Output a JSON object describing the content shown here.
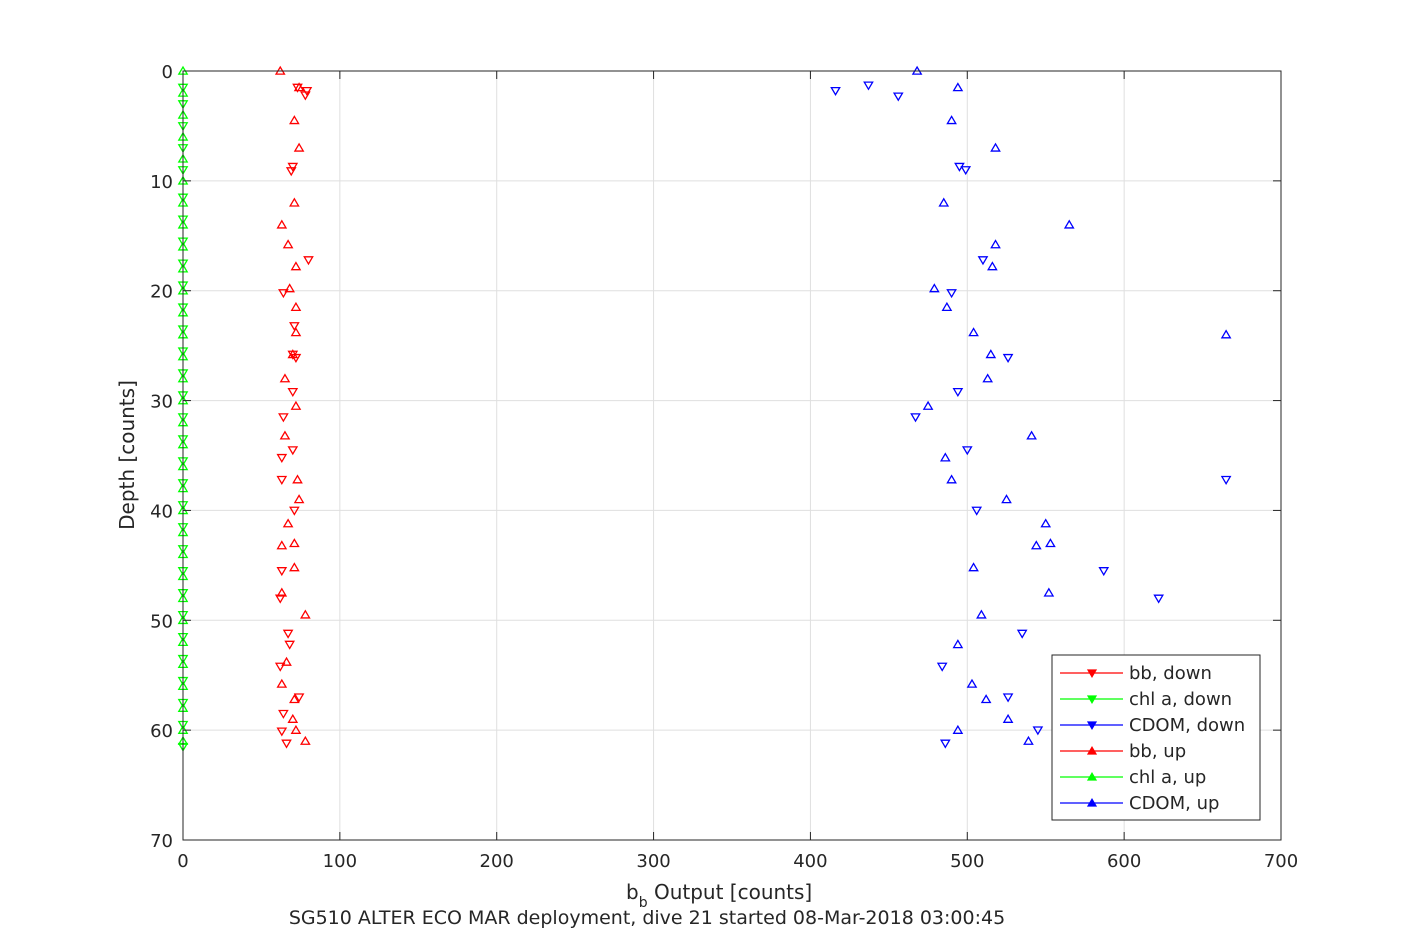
{
  "chart_data": {
    "type": "scatter",
    "xlabel_main": "b",
    "xlabel_sub": "b",
    "xlabel_rest": " Output [counts]",
    "ylabel": "Depth [counts]",
    "caption": "SG510 ALTER ECO MAR deployment, dive 21 started 08-Mar-2018 03:00:45",
    "xlim": [
      0,
      700
    ],
    "ylim": [
      0,
      70
    ],
    "y_reversed": true,
    "grid": true,
    "legend_position": "bottom-right",
    "xticks": [
      "0",
      "100",
      "200",
      "300",
      "400",
      "500",
      "600",
      "700"
    ],
    "yticks": [
      "0",
      "10",
      "20",
      "30",
      "40",
      "50",
      "60",
      "70"
    ],
    "series": [
      {
        "name": "bb, down",
        "color": "#ff0000",
        "marker": "down",
        "points": [
          [
            73,
            1.5
          ],
          [
            79,
            1.8
          ],
          [
            78,
            2.2
          ],
          [
            70,
            8.7
          ],
          [
            69,
            9.1
          ],
          [
            80,
            17.2
          ],
          [
            64,
            20.2
          ],
          [
            71,
            23.2
          ],
          [
            70,
            25.8
          ],
          [
            72,
            26.1
          ],
          [
            70,
            29.2
          ],
          [
            64,
            31.5
          ],
          [
            70,
            34.5
          ],
          [
            63,
            35.2
          ],
          [
            63,
            37.2
          ],
          [
            71,
            40.0
          ],
          [
            63,
            45.5
          ],
          [
            62,
            48.0
          ],
          [
            67,
            51.2
          ],
          [
            68,
            52.2
          ],
          [
            62,
            54.2
          ],
          [
            74,
            57.0
          ],
          [
            64,
            58.5
          ],
          [
            63,
            60.1
          ],
          [
            66,
            61.2
          ]
        ]
      },
      {
        "name": "chl a, down",
        "color": "#00ff00",
        "marker": "down",
        "points": [
          [
            0,
            1.5
          ],
          [
            0,
            3.0
          ],
          [
            0,
            5.0
          ],
          [
            0,
            7.0
          ],
          [
            0,
            9.0
          ],
          [
            0,
            11.5
          ],
          [
            0,
            13.5
          ],
          [
            0,
            15.5
          ],
          [
            0,
            17.5
          ],
          [
            0,
            19.5
          ],
          [
            0,
            21.5
          ],
          [
            0,
            23.5
          ],
          [
            0,
            25.5
          ],
          [
            0,
            27.5
          ],
          [
            0,
            29.5
          ],
          [
            0,
            31.5
          ],
          [
            0,
            33.5
          ],
          [
            0,
            35.5
          ],
          [
            0,
            37.5
          ],
          [
            0,
            39.5
          ],
          [
            0,
            41.5
          ],
          [
            0,
            43.5
          ],
          [
            0,
            45.5
          ],
          [
            0,
            47.5
          ],
          [
            0,
            49.5
          ],
          [
            0,
            51.5
          ],
          [
            0,
            53.5
          ],
          [
            0,
            55.5
          ],
          [
            0,
            57.5
          ],
          [
            0,
            59.5
          ],
          [
            0,
            61.5
          ]
        ]
      },
      {
        "name": "CDOM, down",
        "color": "#0000ff",
        "marker": "down",
        "points": [
          [
            416,
            1.8
          ],
          [
            437,
            1.3
          ],
          [
            456,
            2.3
          ],
          [
            499,
            9.0
          ],
          [
            495,
            8.7
          ],
          [
            510,
            17.2
          ],
          [
            490,
            20.2
          ],
          [
            526,
            26.1
          ],
          [
            494,
            29.2
          ],
          [
            467,
            31.5
          ],
          [
            500,
            34.5
          ],
          [
            665,
            37.2
          ],
          [
            506,
            40.0
          ],
          [
            587,
            45.5
          ],
          [
            622,
            48.0
          ],
          [
            535,
            51.2
          ],
          [
            484,
            54.2
          ],
          [
            526,
            57.0
          ],
          [
            545,
            60.0
          ],
          [
            486,
            61.2
          ]
        ]
      },
      {
        "name": "bb, up",
        "color": "#ff0000",
        "marker": "up",
        "points": [
          [
            62,
            0.0
          ],
          [
            74,
            1.5
          ],
          [
            71,
            4.5
          ],
          [
            74,
            7.0
          ],
          [
            71,
            12.0
          ],
          [
            63,
            14.0
          ],
          [
            67,
            15.8
          ],
          [
            72,
            17.8
          ],
          [
            68,
            19.8
          ],
          [
            72,
            21.5
          ],
          [
            72,
            23.8
          ],
          [
            70,
            25.8
          ],
          [
            65,
            28.0
          ],
          [
            72,
            30.5
          ],
          [
            65,
            33.2
          ],
          [
            73,
            37.2
          ],
          [
            74,
            39.0
          ],
          [
            67,
            41.2
          ],
          [
            71,
            43.0
          ],
          [
            63,
            43.2
          ],
          [
            71,
            45.2
          ],
          [
            63,
            47.5
          ],
          [
            78,
            49.5
          ],
          [
            66,
            53.8
          ],
          [
            63,
            55.8
          ],
          [
            71,
            57.2
          ],
          [
            70,
            59.0
          ],
          [
            72,
            60.0
          ],
          [
            78,
            61.0
          ]
        ]
      },
      {
        "name": "chl a, up",
        "color": "#00ff00",
        "marker": "up",
        "points": [
          [
            0,
            0.0
          ],
          [
            0,
            2.0
          ],
          [
            0,
            4.0
          ],
          [
            0,
            6.0
          ],
          [
            0,
            8.0
          ],
          [
            0,
            10.0
          ],
          [
            0,
            12.0
          ],
          [
            0,
            14.0
          ],
          [
            0,
            16.0
          ],
          [
            0,
            18.0
          ],
          [
            0,
            20.0
          ],
          [
            0,
            22.0
          ],
          [
            0,
            24.0
          ],
          [
            0,
            26.0
          ],
          [
            0,
            28.0
          ],
          [
            0,
            30.0
          ],
          [
            0,
            32.0
          ],
          [
            0,
            34.0
          ],
          [
            0,
            36.0
          ],
          [
            0,
            38.0
          ],
          [
            0,
            40.0
          ],
          [
            0,
            42.0
          ],
          [
            0,
            44.0
          ],
          [
            0,
            46.0
          ],
          [
            0,
            48.0
          ],
          [
            0,
            50.0
          ],
          [
            0,
            52.0
          ],
          [
            0,
            54.0
          ],
          [
            0,
            56.0
          ],
          [
            0,
            58.0
          ],
          [
            0,
            60.0
          ],
          [
            0,
            61.0
          ]
        ]
      },
      {
        "name": "CDOM, up",
        "color": "#0000ff",
        "marker": "up",
        "points": [
          [
            468,
            0.0
          ],
          [
            494,
            1.5
          ],
          [
            490,
            4.5
          ],
          [
            518,
            7.0
          ],
          [
            485,
            12.0
          ],
          [
            565,
            14.0
          ],
          [
            518,
            15.8
          ],
          [
            516,
            17.8
          ],
          [
            479,
            19.8
          ],
          [
            487,
            21.5
          ],
          [
            504,
            23.8
          ],
          [
            665,
            24.0
          ],
          [
            515,
            25.8
          ],
          [
            513,
            28.0
          ],
          [
            475,
            30.5
          ],
          [
            541,
            33.2
          ],
          [
            486,
            35.2
          ],
          [
            490,
            37.2
          ],
          [
            525,
            39.0
          ],
          [
            550,
            41.2
          ],
          [
            544,
            43.2
          ],
          [
            553,
            43.0
          ],
          [
            504,
            45.2
          ],
          [
            552,
            47.5
          ],
          [
            509,
            49.5
          ],
          [
            494,
            52.2
          ],
          [
            503,
            55.8
          ],
          [
            512,
            57.2
          ],
          [
            526,
            59.0
          ],
          [
            494,
            60.0
          ],
          [
            539,
            61.0
          ]
        ]
      }
    ]
  }
}
